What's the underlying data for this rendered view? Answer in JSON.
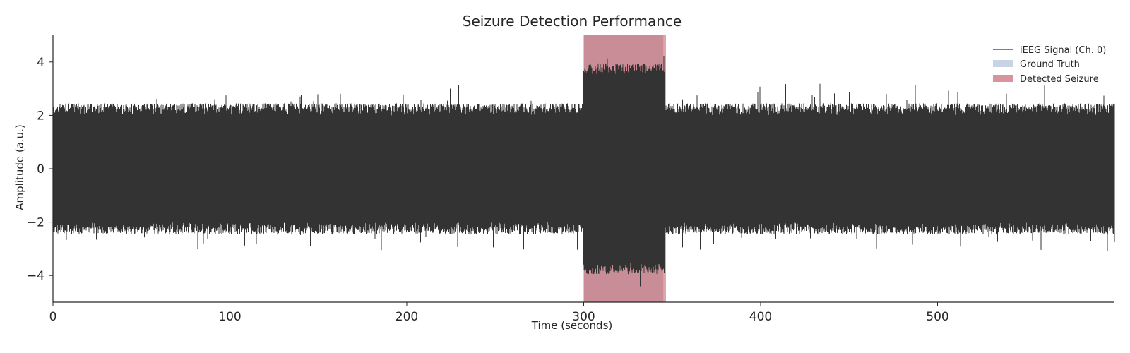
{
  "chart_data": {
    "type": "line",
    "title": "Seizure Detection Performance",
    "xlabel": "Time (seconds)",
    "ylabel": "Amplitude (a.u.)",
    "xlim": [
      0,
      600
    ],
    "ylim": [
      -5,
      5
    ],
    "xticks": [
      0,
      100,
      200,
      300,
      400,
      500
    ],
    "yticks": [
      -4,
      -2,
      0,
      2,
      4
    ],
    "xtick_labels": [
      "0",
      "100",
      "200",
      "300",
      "400",
      "500"
    ],
    "ytick_labels": [
      "−4",
      "−2",
      "0",
      "2",
      "4"
    ],
    "grid": false,
    "legend_position": "top-right",
    "signal": {
      "name": "iEEG Signal (Ch. 0)",
      "color": "#333333",
      "baseline_envelope": [
        -2.0,
        2.0
      ],
      "baseline_peak_range": [
        -3.1,
        3.2
      ],
      "seizure_interval": [
        300,
        346
      ],
      "seizure_envelope": [
        -3.5,
        3.5
      ],
      "seizure_peak_range": [
        -4.6,
        4.4
      ]
    },
    "ground_truth": {
      "name": "Ground Truth",
      "color": "#c8d4e6",
      "start": 300,
      "end": 345
    },
    "detected": {
      "name": "Detected Seizure",
      "color": "#d6949d",
      "start": 300,
      "end": 346.5
    }
  }
}
